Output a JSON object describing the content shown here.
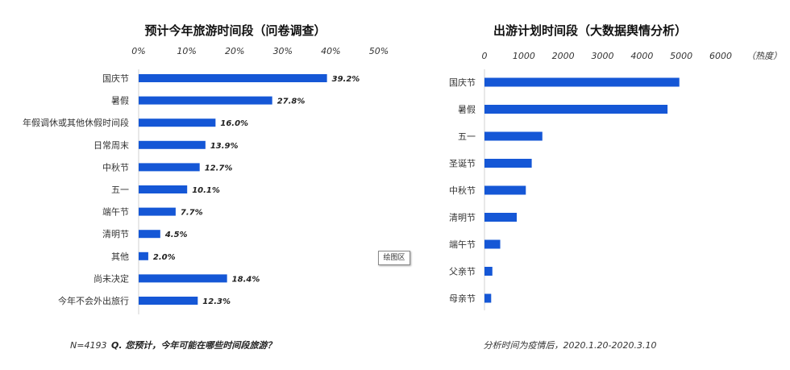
{
  "chart_data": [
    {
      "type": "bar",
      "orientation": "horizontal",
      "title": "预计今年旅游时间段（问卷调查）",
      "xticks": [
        "0%",
        "10%",
        "20%",
        "30%",
        "40%",
        "50%"
      ],
      "xlim": [
        0,
        50
      ],
      "categories": [
        "国庆节",
        "暑假",
        "年假调休或其他休假时间段",
        "日常周末",
        "中秋节",
        "五一",
        "端午节",
        "清明节",
        "其他",
        "尚未决定",
        "今年不会外出旅行"
      ],
      "values": [
        39.2,
        27.8,
        16.0,
        13.9,
        12.7,
        10.1,
        7.7,
        4.5,
        2.0,
        18.4,
        12.3
      ],
      "labels": [
        "39.2%",
        "27.8%",
        "16.0%",
        "13.9%",
        "12.7%",
        "10.1%",
        "7.7%",
        "4.5%",
        "2.0%",
        "18.4%",
        "12.3%"
      ],
      "note_prefix": "N=4193",
      "note": "Q. 您预计，今年可能在哪些时间段旅游？",
      "bar_color": "#1557d6"
    },
    {
      "type": "bar",
      "orientation": "horizontal",
      "title": "出游计划时间段（大数据舆情分析）",
      "xticks": [
        "0",
        "1000",
        "2000",
        "3000",
        "4000",
        "5000",
        "6000"
      ],
      "xunit": "（热度）",
      "xlim": [
        0,
        6000
      ],
      "categories": [
        "国庆节",
        "暑假",
        "五一",
        "圣诞节",
        "中秋节",
        "清明节",
        "端午节",
        "父亲节",
        "母亲节"
      ],
      "values": [
        4950,
        4650,
        1470,
        1200,
        1050,
        820,
        400,
        200,
        170
      ],
      "note": "分析时间为疫情后，2020.1.20-2020.3.10",
      "bar_color": "#1557d6"
    }
  ],
  "tooltip": "绘图区"
}
